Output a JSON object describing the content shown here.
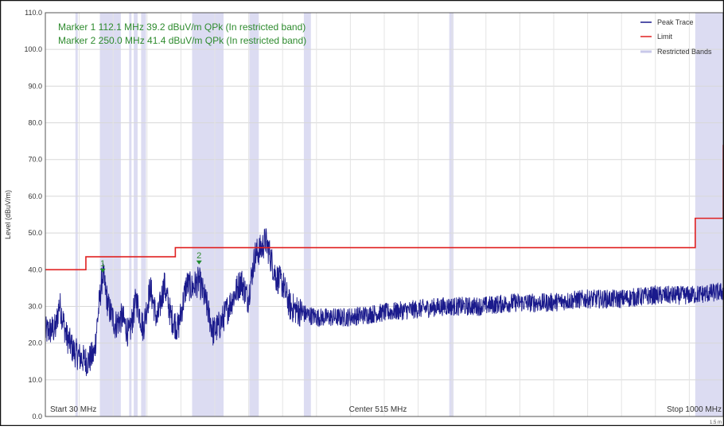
{
  "chart_data": {
    "type": "line",
    "ylabel": "Level (dBuV/m)",
    "ylim": [
      0,
      110
    ],
    "xlim_mhz": [
      30,
      1000
    ],
    "y_ticks": [
      "0.0",
      "10.0",
      "20.0",
      "30.0",
      "40.0",
      "50.0",
      "60.0",
      "70.0",
      "80.0",
      "90.0",
      "100.0",
      "110.0"
    ],
    "x_labels": {
      "start": "Start 30 MHz",
      "center": "Center 515 MHz",
      "stop": "Stop 1000 MHz"
    },
    "corner_note": "1.5 m",
    "annotations": [
      "Marker 1 112.1 MHz 39.2 dBuV/m QPk (In restricted band)",
      "Marker 2 250.0 MHz 41.4 dBuV/m QPk (In restricted band)"
    ],
    "legend": [
      {
        "name": "Peak Trace",
        "color": "#1a1a8c"
      },
      {
        "name": "Limit",
        "color": "#e02020"
      },
      {
        "name": "Restricted Bands",
        "color": "#c8c8ea"
      }
    ],
    "markers": [
      {
        "label": "1",
        "x": 112.1,
        "y": 39.2
      },
      {
        "label": "2",
        "x": 250.0,
        "y": 41.4
      }
    ],
    "restricted_bands_mhz": [
      [
        73,
        75
      ],
      [
        108,
        138
      ],
      [
        149.9,
        150.05
      ],
      [
        156.5,
        162
      ],
      [
        167,
        174
      ],
      [
        240,
        285
      ],
      [
        322,
        335.4
      ],
      [
        399.9,
        410
      ],
      [
        608,
        614
      ],
      [
        960,
        1000
      ]
    ],
    "limit_steps": [
      {
        "x_start": 30,
        "x_end": 88,
        "y": 40.0
      },
      {
        "x_start": 88,
        "x_end": 216,
        "y": 43.5
      },
      {
        "x_start": 216,
        "x_end": 960,
        "y": 46.0
      },
      {
        "x_start": 960,
        "x_end": 1000,
        "y": 54.0
      }
    ],
    "peak_trace_envelope": {
      "x": [
        30,
        45,
        50,
        60,
        70,
        80,
        90,
        100,
        105,
        112,
        120,
        130,
        140,
        150,
        160,
        170,
        180,
        190,
        200,
        210,
        220,
        232,
        240,
        250,
        260,
        270,
        280,
        290,
        300,
        310,
        320,
        330,
        340,
        345,
        350,
        360,
        370,
        380,
        400,
        420,
        440,
        460,
        500,
        550,
        600,
        650,
        700,
        750,
        800,
        850,
        900,
        950,
        1000
      ],
      "y": [
        23,
        24,
        31,
        22,
        18,
        16,
        15,
        17,
        27,
        39,
        30,
        25,
        27,
        22,
        32,
        24,
        35,
        26,
        36,
        27,
        24,
        36,
        35,
        37,
        31,
        23,
        25,
        29,
        33,
        37,
        32,
        44,
        46,
        48,
        45,
        38,
        36,
        30,
        28,
        27,
        27,
        27,
        28,
        29,
        30,
        30,
        31,
        31,
        32,
        32,
        33,
        33,
        34
      ]
    }
  }
}
